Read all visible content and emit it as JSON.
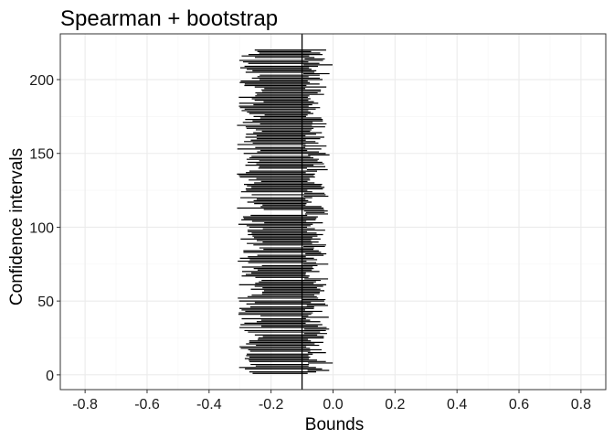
{
  "chart_data": {
    "type": "interval",
    "title": "Spearman + bootstrap",
    "xlabel": "Bounds",
    "ylabel": "Confidence intervals",
    "xlim": [
      -0.88,
      0.88
    ],
    "ylim": [
      -10,
      231
    ],
    "x_ticks": [
      "-0.8",
      "-0.6",
      "-0.4",
      "-0.2",
      "0.0",
      "0.2",
      "0.4",
      "0.6",
      "0.8"
    ],
    "x_tick_values": [
      -0.8,
      -0.6,
      -0.4,
      -0.2,
      0.0,
      0.2,
      0.4,
      0.6,
      0.8
    ],
    "y_ticks": [
      "0",
      "50",
      "100",
      "150",
      "200"
    ],
    "y_tick_values": [
      0,
      50,
      100,
      150,
      200
    ],
    "grid": true,
    "reference_line": -0.1,
    "n_intervals": 220,
    "intervals_approx": {
      "covering_reference": {
        "lower_range": [
          -0.31,
          -0.22
        ],
        "upper_range": [
          -0.09,
          -0.02
        ]
      },
      "missing_reference_above": {
        "lower_range": [
          -0.1,
          -0.08
        ],
        "upper_range": [
          -0.03,
          0.0
        ]
      }
    }
  },
  "colors": {
    "background": "#ffffff",
    "major_grid": "#ebebeb",
    "minor_grid": "#f5f5f5",
    "border": "#333333",
    "segment": "#000000"
  }
}
